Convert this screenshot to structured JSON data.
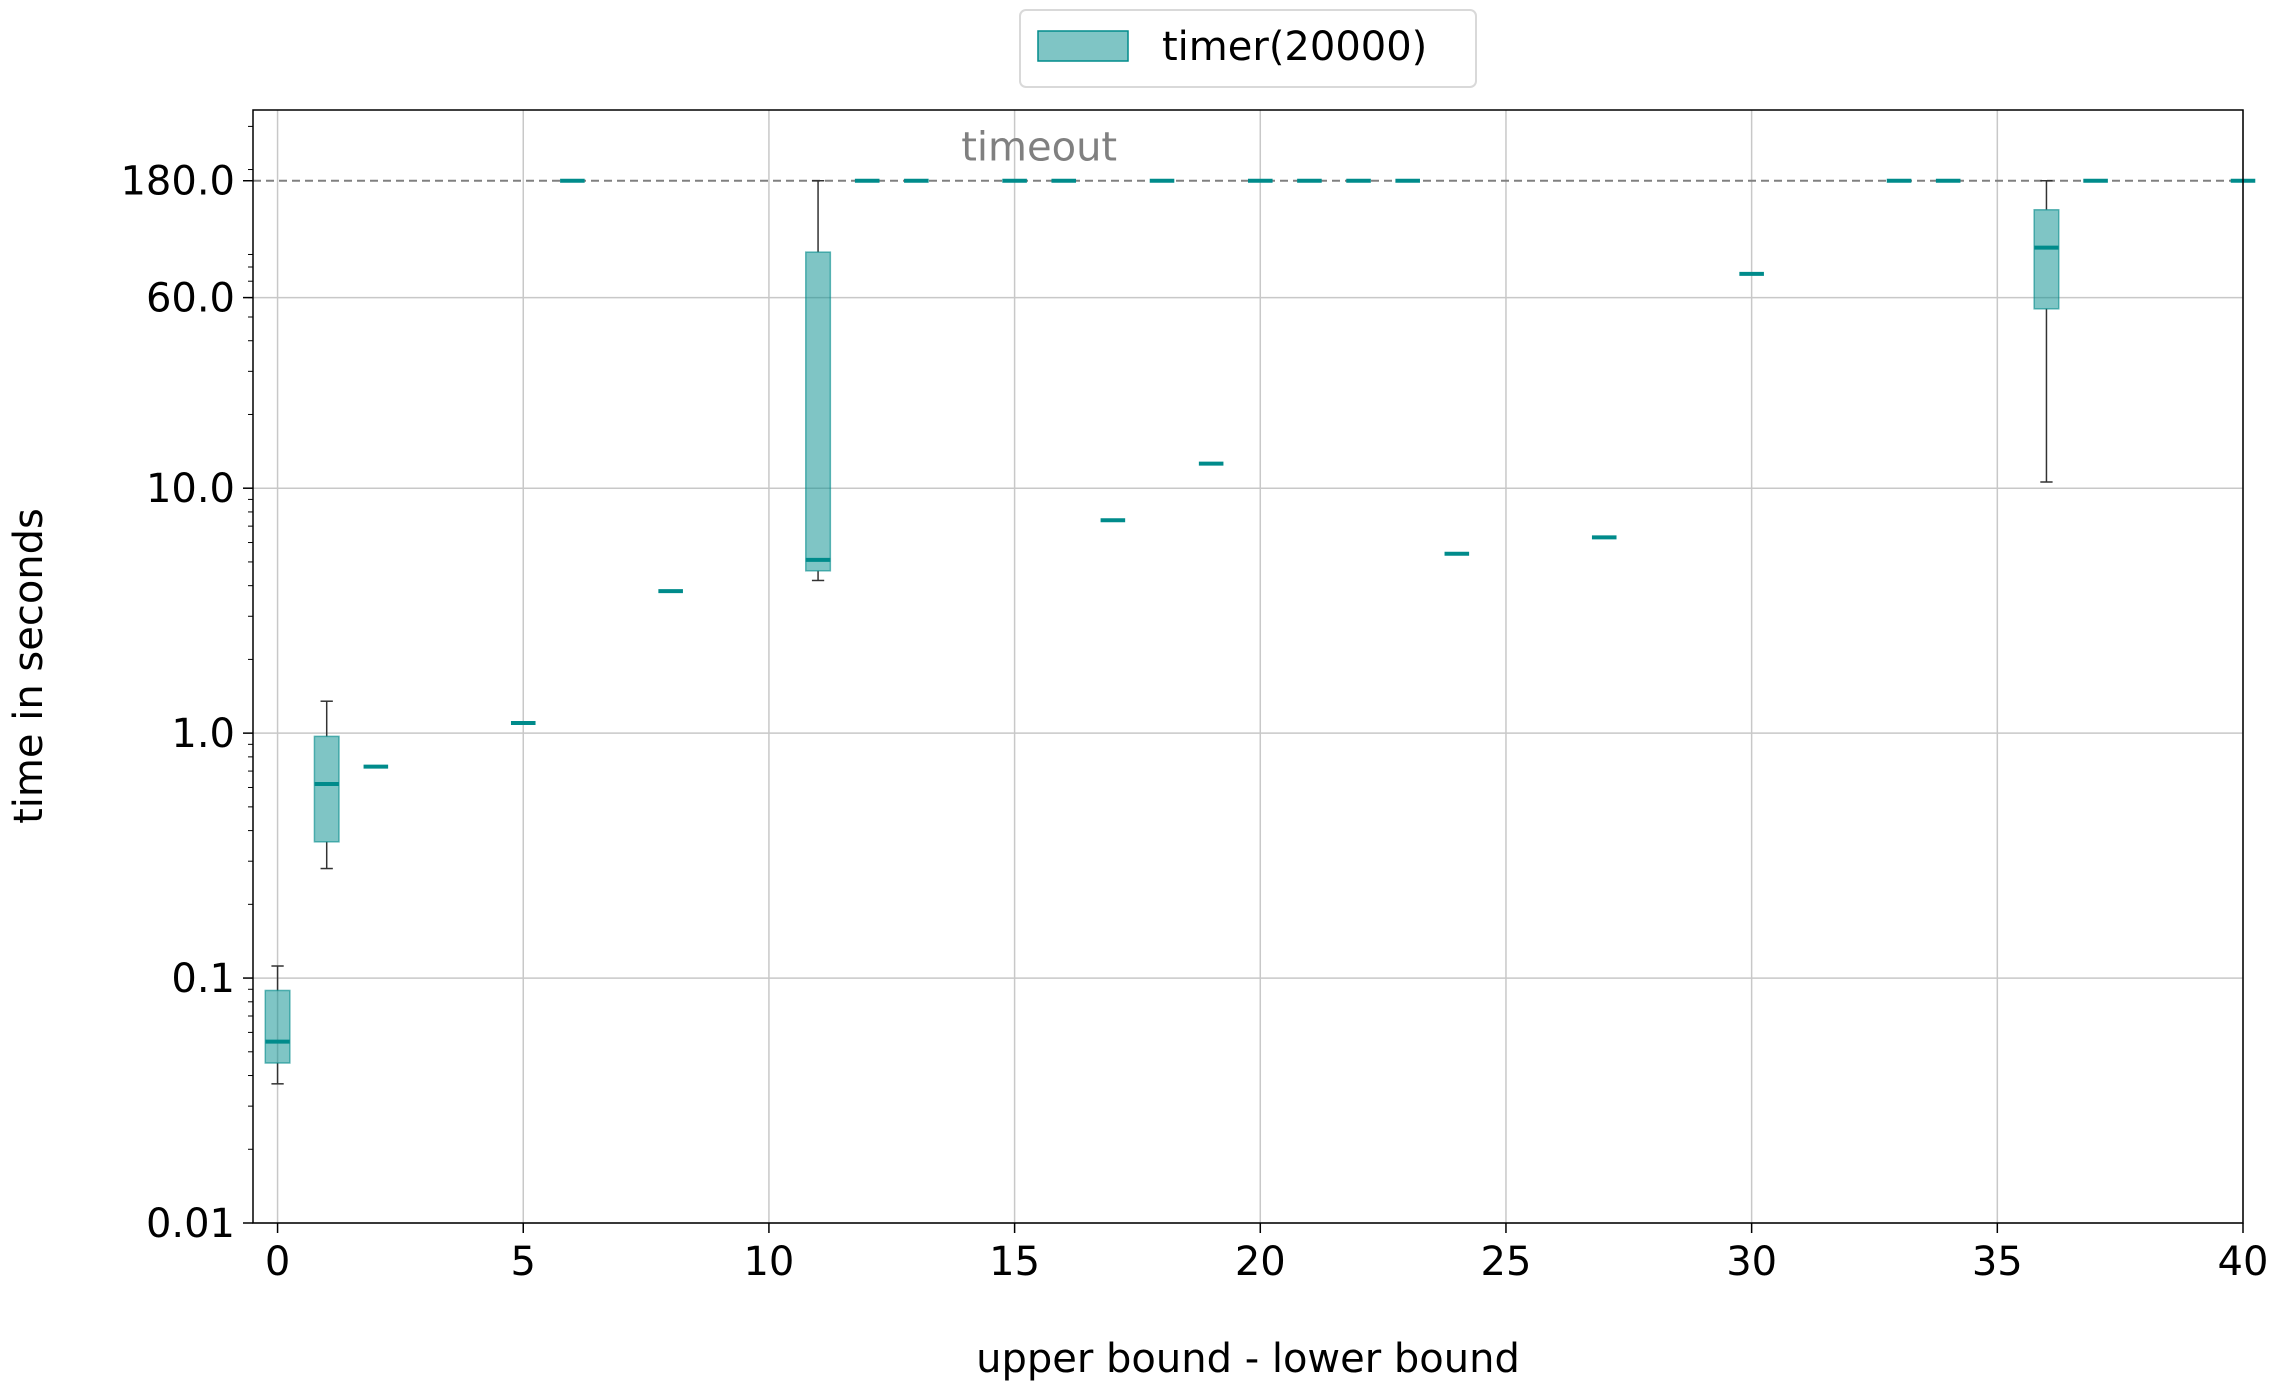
{
  "chart_data": {
    "type": "box",
    "xlabel": "upper bound - lower bound",
    "ylabel": "time in seconds",
    "yscale": "log",
    "xlim": [
      -0.5,
      40
    ],
    "ylim": [
      0.01,
      350
    ],
    "x_ticks": [
      0,
      5,
      10,
      15,
      20,
      25,
      30,
      35,
      40
    ],
    "y_ticks": [
      {
        "value": 0.01,
        "label": "0.01"
      },
      {
        "value": 0.1,
        "label": "0.1"
      },
      {
        "value": 1.0,
        "label": "1.0"
      },
      {
        "value": 10.0,
        "label": "10.0"
      },
      {
        "value": 60.0,
        "label": "60.0"
      },
      {
        "value": 180.0,
        "label": "180.0"
      }
    ],
    "grid": true,
    "legend": {
      "position": "top-center",
      "entries": [
        "timer(20000)"
      ]
    },
    "timeout": {
      "value": 180.0,
      "label": "timeout"
    },
    "series": [
      {
        "name": "timer(20000)",
        "color": "#008b8b",
        "boxes": [
          {
            "x": 0,
            "whislo": 0.037,
            "q1": 0.045,
            "med": 0.055,
            "q3": 0.089,
            "whishi": 0.112
          },
          {
            "x": 1,
            "whislo": 0.28,
            "q1": 0.36,
            "med": 0.62,
            "q3": 0.97,
            "whishi": 1.35
          },
          {
            "x": 2,
            "whislo": 0.73,
            "q1": 0.73,
            "med": 0.73,
            "q3": 0.73,
            "whishi": 0.73
          },
          {
            "x": 5,
            "whislo": 1.1,
            "q1": 1.1,
            "med": 1.1,
            "q3": 1.1,
            "whishi": 1.1
          },
          {
            "x": 6,
            "whislo": 180,
            "q1": 180,
            "med": 180,
            "q3": 180,
            "whishi": 180
          },
          {
            "x": 8,
            "whislo": 3.8,
            "q1": 3.8,
            "med": 3.8,
            "q3": 3.8,
            "whishi": 3.8
          },
          {
            "x": 11,
            "whislo": 4.2,
            "q1": 4.6,
            "med": 5.1,
            "q3": 92,
            "whishi": 180
          },
          {
            "x": 12,
            "whislo": 180,
            "q1": 180,
            "med": 180,
            "q3": 180,
            "whishi": 180
          },
          {
            "x": 13,
            "whislo": 180,
            "q1": 180,
            "med": 180,
            "q3": 180,
            "whishi": 180
          },
          {
            "x": 15,
            "whislo": 180,
            "q1": 180,
            "med": 180,
            "q3": 180,
            "whishi": 180
          },
          {
            "x": 16,
            "whislo": 180,
            "q1": 180,
            "med": 180,
            "q3": 180,
            "whishi": 180
          },
          {
            "x": 17,
            "whislo": 7.4,
            "q1": 7.4,
            "med": 7.4,
            "q3": 7.4,
            "whishi": 7.4
          },
          {
            "x": 18,
            "whislo": 180,
            "q1": 180,
            "med": 180,
            "q3": 180,
            "whishi": 180
          },
          {
            "x": 19,
            "whislo": 12.6,
            "q1": 12.6,
            "med": 12.6,
            "q3": 12.6,
            "whishi": 12.6
          },
          {
            "x": 20,
            "whislo": 180,
            "q1": 180,
            "med": 180,
            "q3": 180,
            "whishi": 180
          },
          {
            "x": 21,
            "whislo": 180,
            "q1": 180,
            "med": 180,
            "q3": 180,
            "whishi": 180
          },
          {
            "x": 22,
            "whislo": 180,
            "q1": 180,
            "med": 180,
            "q3": 180,
            "whishi": 180
          },
          {
            "x": 23,
            "whislo": 180,
            "q1": 180,
            "med": 180,
            "q3": 180,
            "whishi": 180
          },
          {
            "x": 24,
            "whislo": 5.4,
            "q1": 5.4,
            "med": 5.4,
            "q3": 5.4,
            "whishi": 5.4
          },
          {
            "x": 27,
            "whislo": 6.3,
            "q1": 6.3,
            "med": 6.3,
            "q3": 6.3,
            "whishi": 6.3
          },
          {
            "x": 30,
            "whislo": 75,
            "q1": 75,
            "med": 75,
            "q3": 75,
            "whishi": 75
          },
          {
            "x": 33,
            "whislo": 180,
            "q1": 180,
            "med": 180,
            "q3": 180,
            "whishi": 180
          },
          {
            "x": 34,
            "whislo": 180,
            "q1": 180,
            "med": 180,
            "q3": 180,
            "whishi": 180
          },
          {
            "x": 36,
            "whislo": 10.6,
            "q1": 54,
            "med": 96,
            "q3": 137,
            "whishi": 180
          },
          {
            "x": 37,
            "whislo": 180,
            "q1": 180,
            "med": 180,
            "q3": 180,
            "whishi": 180
          },
          {
            "x": 40,
            "whislo": 180,
            "q1": 180,
            "med": 180,
            "q3": 180,
            "whishi": 180
          }
        ]
      }
    ]
  }
}
